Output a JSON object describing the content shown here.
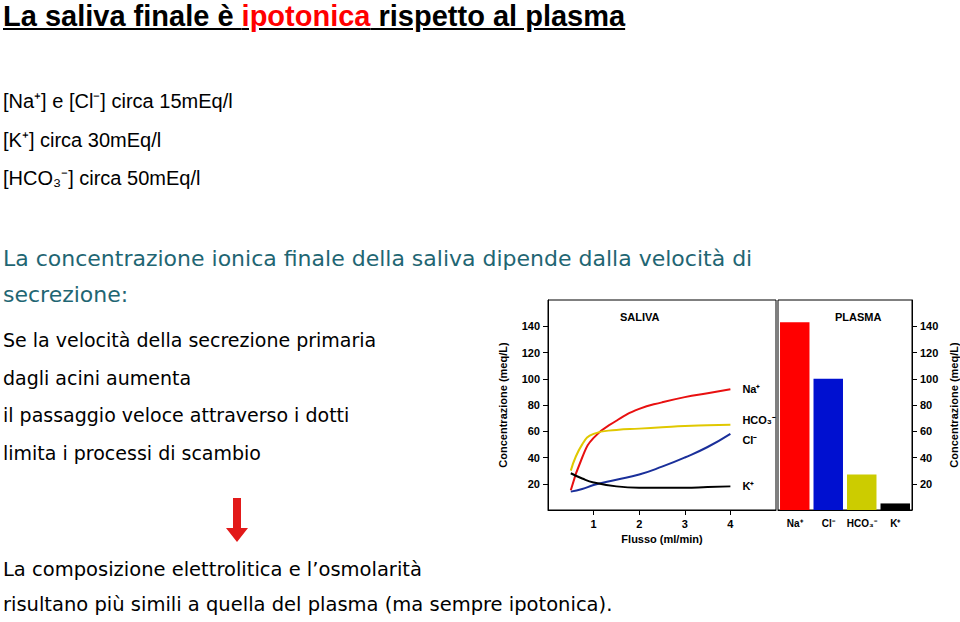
{
  "title": [
    {
      "text": "La saliva finale è ",
      "color": "#000000"
    },
    {
      "text": "ipotonica",
      "color": "#ff0000"
    },
    {
      "text": " rispetto al plasma",
      "color": "#000000"
    }
  ],
  "concentrations": [
    "[Na⁺] e [Cl⁻] circa 15mEq/l",
    "[K⁺] circa 30mEq/l",
    "[HCO₃⁻] circa 50mEq/l"
  ],
  "statement": [
    "La concentrazione ionica finale della saliva dipende dalla velocità di",
    "secrezione:"
  ],
  "explanation": [
    "Se la velocità della secrezione primaria",
    "dagli acini aumenta",
    "il passaggio veloce attraverso i dotti",
    "limita i processi di scambio"
  ],
  "conclusion": [
    "La composizione elettrolitica e l’osmolarità",
    "risultano più simili a quella del plasma  (ma sempre ipotonica)."
  ],
  "chart_data": [
    {
      "type": "line",
      "title": "SALIVA",
      "xlabel": "Flusso (ml/min)",
      "ylabel": "Concentrazione (meq/L)",
      "x": [
        0.5,
        0.75,
        1,
        1.5,
        2,
        2.5,
        3,
        3.5,
        4
      ],
      "xlim": [
        0,
        5
      ],
      "xticks": [
        1,
        2,
        3,
        4
      ],
      "ylim": [
        0,
        160
      ],
      "yticks": [
        20,
        40,
        60,
        80,
        100,
        120,
        140
      ],
      "grid": false,
      "series": [
        {
          "name": "Na⁺",
          "color": "#e81010",
          "values": [
            15,
            40,
            55,
            68,
            77,
            82,
            86,
            89,
            92
          ]
        },
        {
          "name": "HCO₃⁻",
          "color": "#e0c800",
          "values": [
            30,
            50,
            58,
            61,
            62,
            63,
            64,
            64.5,
            65
          ]
        },
        {
          "name": "Cl⁻",
          "color": "#1a2f9a",
          "values": [
            14,
            16,
            19,
            23,
            27,
            33,
            40,
            48,
            58
          ]
        },
        {
          "name": "K⁺",
          "color": "#000000",
          "values": [
            28,
            24,
            21,
            18,
            17,
            17,
            17,
            17.5,
            18
          ]
        }
      ]
    },
    {
      "type": "bar",
      "title": "PLASMA",
      "ylabel": "Concentrazione (meq/L)",
      "categories": [
        "Na⁺",
        "Cl⁻",
        "HCO₃⁻",
        "K⁺"
      ],
      "values": [
        143,
        100,
        27,
        5
      ],
      "colors": [
        "#ff0000",
        "#0010d0",
        "#cccc00",
        "#000000"
      ],
      "ylim": [
        0,
        160
      ],
      "yticks": [
        20,
        40,
        60,
        80,
        100,
        120,
        140
      ],
      "grid": false
    }
  ]
}
